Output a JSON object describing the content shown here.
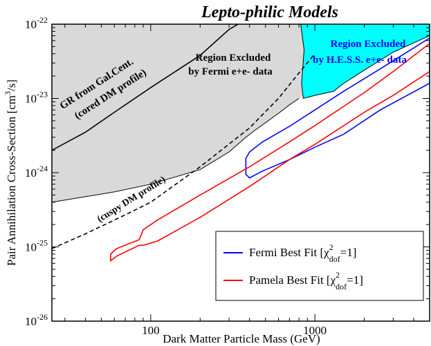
{
  "chart_data": {
    "type": "line",
    "title": "Lepto-philic Models",
    "xlabel": "Dark Matter Particle Mass (GeV)",
    "ylabel_main": "Pair Annihilation Cross-Section [cm",
    "ylabel_sup": "3",
    "ylabel_end": "/s]",
    "xscale": "log",
    "yscale": "log",
    "xlim": [
      25,
      5000
    ],
    "ylim": [
      1e-26,
      1e-22
    ],
    "x_ticks": [
      {
        "value": 100,
        "label": "100"
      },
      {
        "value": 1000,
        "label": "1000"
      }
    ],
    "y_ticks": [
      {
        "value": 1e-26,
        "base": "10",
        "exp": "-26"
      },
      {
        "value": 1e-25,
        "base": "10",
        "exp": "-25"
      },
      {
        "value": 1e-24,
        "base": "10",
        "exp": "-24"
      },
      {
        "value": 1e-23,
        "base": "10",
        "exp": "-23"
      },
      {
        "value": 1e-22,
        "base": "10",
        "exp": "-22"
      }
    ],
    "colors": {
      "excluded_fermi": "#d9d9d9",
      "excluded_hess": "#00ffff",
      "fermi": "#0000ff",
      "pamela": "#ff0000",
      "hess_text": "#0000ff"
    },
    "annotations": {
      "gr_cored_line1": "GR from Gal.Cent.",
      "gr_cored_line2": "(cored DM profile)",
      "cuspy": "(cuspy DM profile)",
      "fermi_region_line1": "Region Excluded",
      "fermi_region_line2": "by Fermi e+e- data",
      "hess_region_line1": "Region Excluded",
      "hess_region_line2": "by H.E.S.S. e+e- data"
    },
    "series": [
      {
        "name": "Fermi Best Fit",
        "color": "#0000ff",
        "legend": {
          "prefix": "Fermi Best Fit [",
          "chi": "χ",
          "sup": "2",
          "sub": "dof",
          "suffix": "=1]"
        },
        "upper": [
          [
            380,
            1.55e-24
          ],
          [
            400,
            1.9e-24
          ],
          [
            480,
            2.6e-24
          ],
          [
            700,
            4.2e-24
          ],
          [
            1000,
            7e-24
          ],
          [
            1500,
            1.25e-23
          ],
          [
            2500,
            2.5e-23
          ],
          [
            5000,
            6.5e-23
          ]
        ],
        "lower": [
          [
            5000,
            1.6e-23
          ],
          [
            2500,
            7e-24
          ],
          [
            1500,
            3.3e-24
          ],
          [
            1000,
            2.2e-24
          ],
          [
            700,
            1.5e-24
          ],
          [
            480,
            1.05e-24
          ],
          [
            400,
            8.5e-25
          ],
          [
            380,
            9.5e-25
          ]
        ]
      },
      {
        "name": "Pamela Best Fit",
        "color": "#ff0000",
        "legend": {
          "prefix": "Pamela Best Fit [",
          "chi": "χ",
          "sup": "2",
          "sub": "dof",
          "suffix": "=1]"
        },
        "upper": [
          [
            57,
            8e-26
          ],
          [
            62,
            9.5e-26
          ],
          [
            85,
            1.25e-25
          ],
          [
            90,
            1.7e-25
          ],
          [
            110,
            2.3e-25
          ],
          [
            200,
            5e-25
          ],
          [
            400,
            1.2e-24
          ],
          [
            700,
            2.6e-24
          ],
          [
            1000,
            4.3e-24
          ],
          [
            2000,
            1.2e-23
          ],
          [
            3000,
            2.3e-23
          ],
          [
            5000,
            5.5e-23
          ]
        ],
        "lower": [
          [
            5000,
            2.3e-23
          ],
          [
            3000,
            1.1e-23
          ],
          [
            2000,
            6.5e-24
          ],
          [
            1000,
            2.4e-24
          ],
          [
            700,
            1.5e-24
          ],
          [
            400,
            6.5e-25
          ],
          [
            200,
            2.5e-25
          ],
          [
            110,
            1.2e-25
          ],
          [
            90,
            1.05e-25
          ],
          [
            85,
            1.05e-25
          ],
          [
            62,
            7.5e-26
          ],
          [
            57,
            6.5e-26
          ]
        ]
      },
      {
        "name": "GR cored",
        "color": "#000000",
        "dash": "solid",
        "points": [
          [
            25,
            2e-24
          ],
          [
            40,
            3.5e-24
          ],
          [
            60,
            6.5e-24
          ],
          [
            100,
            1.4e-23
          ],
          [
            200,
            3.8e-23
          ],
          [
            300,
            8.5e-23
          ],
          [
            340,
            1e-22
          ]
        ]
      },
      {
        "name": "GR cuspy",
        "color": "#000000",
        "dash": "dashed",
        "points": [
          [
            25,
            9.5e-26
          ],
          [
            40,
            1.5e-25
          ],
          [
            70,
            2.7e-25
          ],
          [
            100,
            4e-25
          ],
          [
            200,
            1.2e-24
          ],
          [
            400,
            4e-24
          ],
          [
            600,
            1e-23
          ],
          [
            800,
            2.2e-23
          ],
          [
            1000,
            4e-23
          ]
        ]
      }
    ],
    "excluded_regions": [
      {
        "name": "Fermi excluded",
        "color": "#d9d9d9",
        "boundary": [
          [
            25,
            4e-25
          ],
          [
            60,
            5.5e-25
          ],
          [
            100,
            7e-25
          ],
          [
            200,
            1.1e-24
          ],
          [
            300,
            1.9e-24
          ],
          [
            380,
            3e-24
          ],
          [
            430,
            3.7e-24
          ],
          [
            500,
            4.7e-24
          ],
          [
            600,
            6.3e-24
          ],
          [
            700,
            8.2e-24
          ],
          [
            800,
            1e-23
          ]
        ]
      },
      {
        "name": "H.E.S.S. excluded",
        "color": "#00ffff",
        "boundary": [
          [
            820,
            1e-22
          ],
          [
            860,
            4.5e-23
          ],
          [
            830,
            1.6e-23
          ],
          [
            850,
            1e-23
          ],
          [
            1000,
            1.1e-23
          ],
          [
            1300,
            1.25e-23
          ],
          [
            1500,
            1.6e-23
          ],
          [
            2000,
            2.4e-23
          ],
          [
            3000,
            4.2e-23
          ],
          [
            4000,
            5.6e-23
          ],
          [
            5000,
            7e-23
          ]
        ]
      }
    ],
    "legend_position": "bottom-right",
    "grid": false
  }
}
